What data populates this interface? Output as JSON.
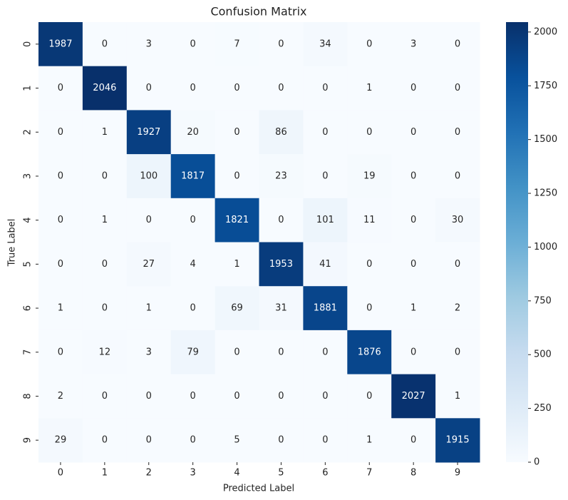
{
  "chart_data": {
    "type": "heatmap",
    "title": "Confusion Matrix",
    "x_label": "Predicted Label",
    "y_label": "True Label",
    "x_categories": [
      "0",
      "1",
      "2",
      "3",
      "4",
      "5",
      "6",
      "7",
      "8",
      "9"
    ],
    "y_categories": [
      "0",
      "1",
      "2",
      "3",
      "4",
      "5",
      "6",
      "7",
      "8",
      "9"
    ],
    "values": [
      [
        1987,
        0,
        3,
        0,
        7,
        0,
        34,
        0,
        3,
        0
      ],
      [
        0,
        2046,
        0,
        0,
        0,
        0,
        0,
        1,
        0,
        0
      ],
      [
        0,
        1,
        1927,
        20,
        0,
        86,
        0,
        0,
        0,
        0
      ],
      [
        0,
        0,
        100,
        1817,
        0,
        23,
        0,
        19,
        0,
        0
      ],
      [
        0,
        1,
        0,
        0,
        1821,
        0,
        101,
        11,
        0,
        30
      ],
      [
        0,
        0,
        27,
        4,
        1,
        1953,
        41,
        0,
        0,
        0
      ],
      [
        1,
        0,
        1,
        0,
        69,
        31,
        1881,
        0,
        1,
        2
      ],
      [
        0,
        12,
        3,
        79,
        0,
        0,
        0,
        1876,
        0,
        0
      ],
      [
        2,
        0,
        0,
        0,
        0,
        0,
        0,
        0,
        2027,
        1
      ],
      [
        29,
        0,
        0,
        0,
        5,
        0,
        0,
        1,
        0,
        1915
      ]
    ],
    "colors": [
      "#f7fbff",
      "#deebf7",
      "#c6dbef",
      "#9ecae1",
      "#6baed6",
      "#4292c6",
      "#2171b5",
      "#08519c",
      "#08306b"
    ],
    "zlim": [
      0,
      2046
    ],
    "zticks": [
      0,
      250,
      500,
      750,
      1000,
      1250,
      1500,
      1750,
      2000
    ]
  }
}
